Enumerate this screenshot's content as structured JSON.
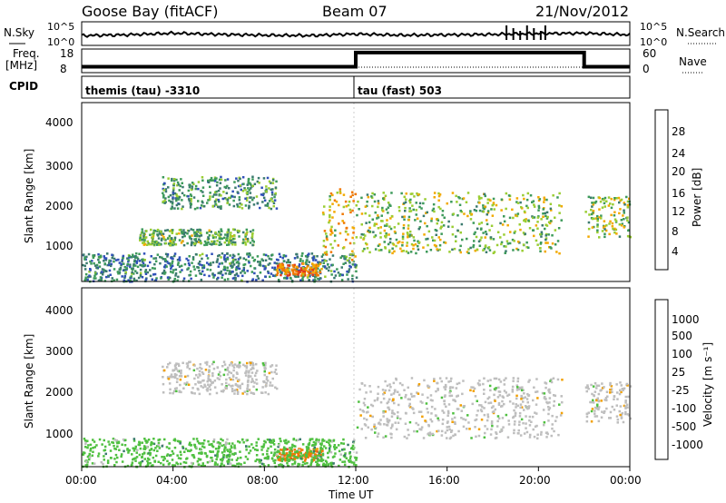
{
  "header": {
    "station": "Goose Bay (fitACF)",
    "beam": "Beam 07",
    "date": "21/Nov/2012"
  },
  "nsky_panel": {
    "left_label": "N.Sky",
    "left_ticks": [
      "10^5",
      "10^0"
    ],
    "right_ticks": [
      "10^5",
      "10^0"
    ],
    "right_label": "N.Search"
  },
  "freq_panel": {
    "left_label_line1": "Freq.",
    "left_label_line2": "[MHz]",
    "left_ticks": [
      "18",
      "8"
    ],
    "right_ticks": [
      "60",
      "0"
    ],
    "right_label": "Nave"
  },
  "cpid_panel": {
    "label": "CPID",
    "modes": [
      {
        "name": "themis (tau) -3310",
        "start_ut": 0
      },
      {
        "name": "tau (fast) 503",
        "start_ut": 12
      }
    ]
  },
  "power_panel": {
    "ylabel": "Slant Range [km]",
    "yticks": [
      "4000",
      "3000",
      "2000",
      "1000"
    ],
    "colorbar_label": "Power [dB]",
    "colorbar_ticks": [
      "28",
      "24",
      "20",
      "16",
      "12",
      "8",
      "4"
    ],
    "colors": [
      "#1a2bd6",
      "#2f4fb8",
      "#3b7a6e",
      "#3d9a5a",
      "#9acd32",
      "#f2a900",
      "#f07800",
      "#e03a1a",
      "#ff0000"
    ]
  },
  "velocity_panel": {
    "ylabel": "Slant Range [km]",
    "yticks": [
      "4000",
      "3000",
      "2000",
      "1000"
    ],
    "colorbar_label": "Velocity [m s⁻¹]",
    "colorbar_ticks": [
      "1000",
      "500",
      "100",
      "25",
      "-25",
      "-100",
      "-500",
      "-1000"
    ],
    "colors": [
      "#1a2bd6",
      "#3b4fb0",
      "#3b7a6e",
      "#4fc040",
      "#bebebe",
      "#f2a000",
      "#f07800",
      "#e03a1a",
      "#ff0000"
    ]
  },
  "x_axis": {
    "ticks": [
      "00:00",
      "04:00",
      "08:00",
      "12:00",
      "16:00",
      "20:00",
      "00:00"
    ],
    "label": "Time UT"
  },
  "chart_data": [
    {
      "type": "line",
      "name": "N.Sky",
      "x": [
        0,
        2,
        4,
        6,
        8,
        10,
        12,
        14,
        16,
        18,
        20,
        22,
        24
      ],
      "values_log10": [
        2.0,
        2.2,
        2.6,
        2.3,
        2.1,
        2.0,
        2.4,
        2.1,
        2.2,
        2.3,
        2.5,
        2.6,
        2.2
      ],
      "xlim": [
        0,
        24
      ]
    },
    {
      "type": "line",
      "name": "Freq. [MHz]",
      "x": [
        0,
        12,
        12,
        22,
        22,
        24
      ],
      "values": [
        10.5,
        10.5,
        16.5,
        16.5,
        10.5,
        10.5
      ],
      "ylim": [
        8,
        18
      ]
    },
    {
      "type": "heatmap",
      "name": "Power [dB]",
      "x_range": [
        0,
        24
      ],
      "y_range_km": [
        180,
        4600
      ],
      "clim": [
        0,
        30
      ],
      "regions": [
        {
          "t": [
            3.5,
            8.5
          ],
          "r": [
            2000,
            2800
          ],
          "value": 10
        },
        {
          "t": [
            2.5,
            7.5
          ],
          "r": [
            1100,
            1500
          ],
          "value": 12
        },
        {
          "t": [
            0,
            12
          ],
          "r": [
            200,
            900
          ],
          "value": 8
        },
        {
          "t": [
            8.5,
            10.5
          ],
          "r": [
            350,
            650
          ],
          "value": 22
        },
        {
          "t": [
            10.5,
            12
          ],
          "r": [
            700,
            2500
          ],
          "value": 18
        },
        {
          "t": [
            12,
            21
          ],
          "r": [
            900,
            2400
          ],
          "value": 14
        },
        {
          "t": [
            22,
            24
          ],
          "r": [
            1300,
            2300
          ],
          "value": 14
        }
      ]
    },
    {
      "type": "heatmap",
      "name": "Velocity [m s^-1]",
      "x_range": [
        0,
        24
      ],
      "y_range_km": [
        180,
        4600
      ],
      "clim": [
        -1000,
        1000
      ],
      "regions": [
        {
          "t": [
            3.5,
            8.5
          ],
          "r": [
            2000,
            2800
          ],
          "value": 0
        },
        {
          "t": [
            12,
            21
          ],
          "r": [
            900,
            2400
          ],
          "value": 0
        },
        {
          "t": [
            8.5,
            10.5
          ],
          "r": [
            350,
            650
          ],
          "value": -300
        },
        {
          "t": [
            0,
            12
          ],
          "r": [
            200,
            900
          ],
          "value": 50
        },
        {
          "t": [
            22,
            24
          ],
          "r": [
            1300,
            2300
          ],
          "value": 0
        }
      ]
    }
  ]
}
